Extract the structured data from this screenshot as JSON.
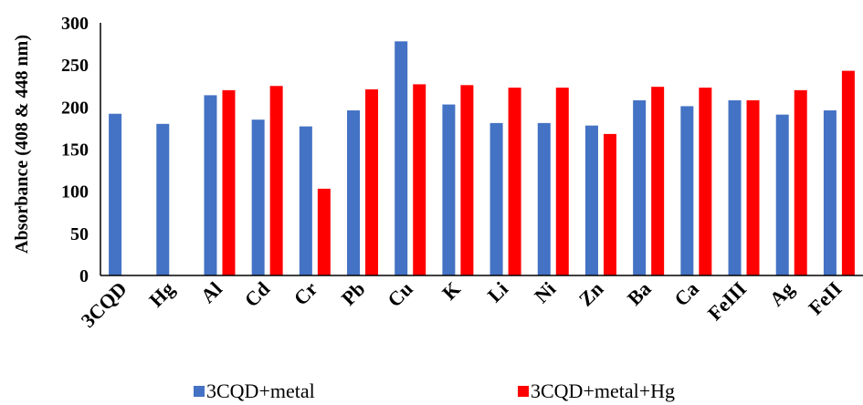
{
  "chart_data": {
    "type": "bar",
    "title": "",
    "xlabel": "",
    "ylabel": "Absorbance (408 & 448 nm)",
    "ylim": [
      0,
      300
    ],
    "yticks": [
      0,
      50,
      100,
      150,
      200,
      250,
      300
    ],
    "grid": false,
    "legend_position": "bottom",
    "categories": [
      "3CQD",
      "Hg",
      "Al",
      "Cd",
      "Cr",
      "Pb",
      "Cu",
      "K",
      "Li",
      "Ni",
      "Zn",
      "Ba",
      "Ca",
      "FeIII",
      "Ag",
      "FeII"
    ],
    "series": [
      {
        "name": "3CQD+metal",
        "color": "#4472C4",
        "values": [
          192,
          180,
          214,
          185,
          177,
          196,
          278,
          203,
          181,
          181,
          178,
          208,
          201,
          208,
          191,
          196
        ]
      },
      {
        "name": "3CQD+metal+Hg",
        "color": "#FF0000",
        "values": [
          null,
          null,
          220,
          225,
          103,
          221,
          227,
          226,
          223,
          223,
          168,
          224,
          223,
          208,
          220,
          243
        ]
      }
    ]
  }
}
